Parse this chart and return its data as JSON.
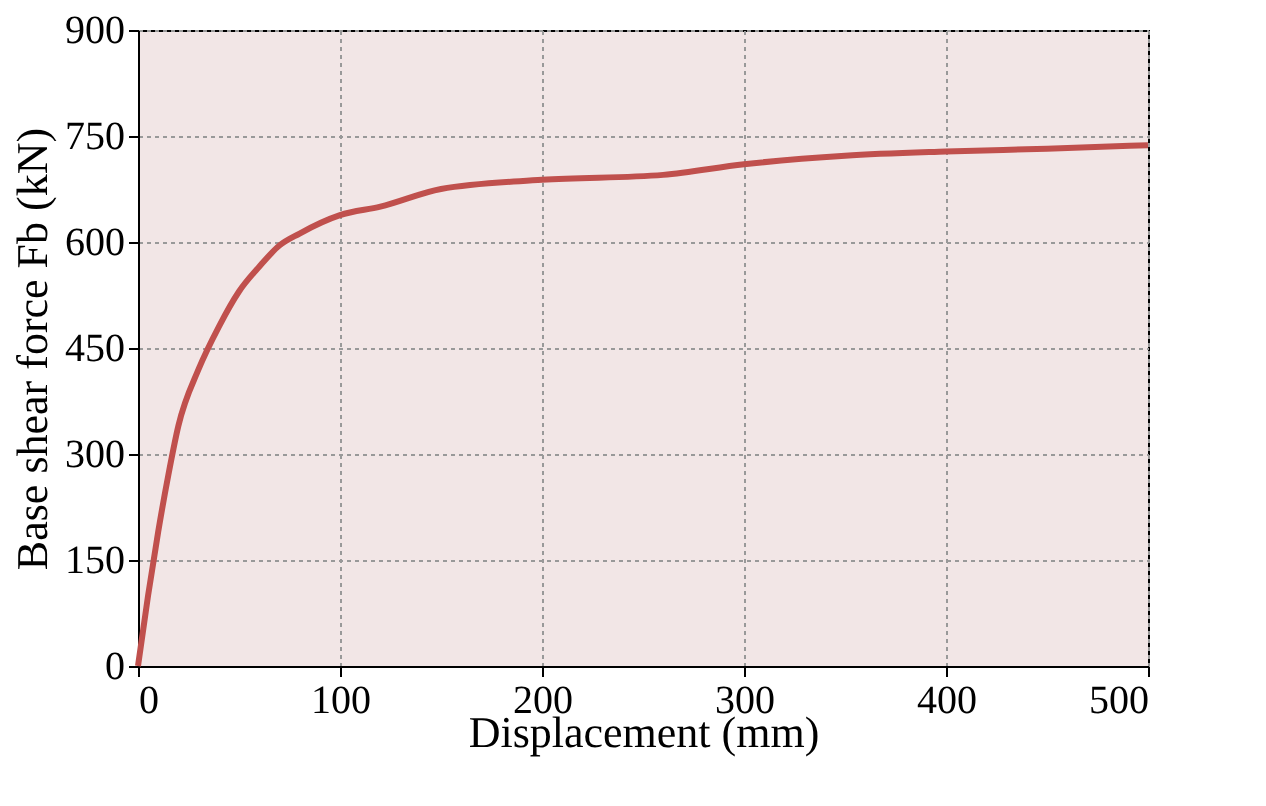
{
  "chart_data": {
    "type": "line",
    "xlabel": "Displacement  (mm)",
    "ylabel": "Base shear force Fb (kN)",
    "x": [
      0,
      5,
      10,
      15,
      20,
      30,
      40,
      50,
      60,
      70,
      80,
      100,
      120,
      150,
      200,
      260,
      300,
      350,
      400,
      450,
      500
    ],
    "series": [
      {
        "color": "#c0504d",
        "values": [
          0,
          100,
          190,
          270,
          340,
          420,
          480,
          530,
          565,
          595,
          612,
          638,
          650,
          675,
          688,
          695,
          710,
          722,
          728,
          732,
          737
        ]
      }
    ],
    "xlim": [
      0,
      500
    ],
    "xticks": [
      0,
      100,
      200,
      300,
      400,
      500
    ],
    "ylim": [
      0,
      900
    ],
    "yticks": [
      0,
      150,
      300,
      450,
      600,
      750,
      900
    ],
    "grid": true,
    "marker": "none",
    "line_style": "solid"
  }
}
